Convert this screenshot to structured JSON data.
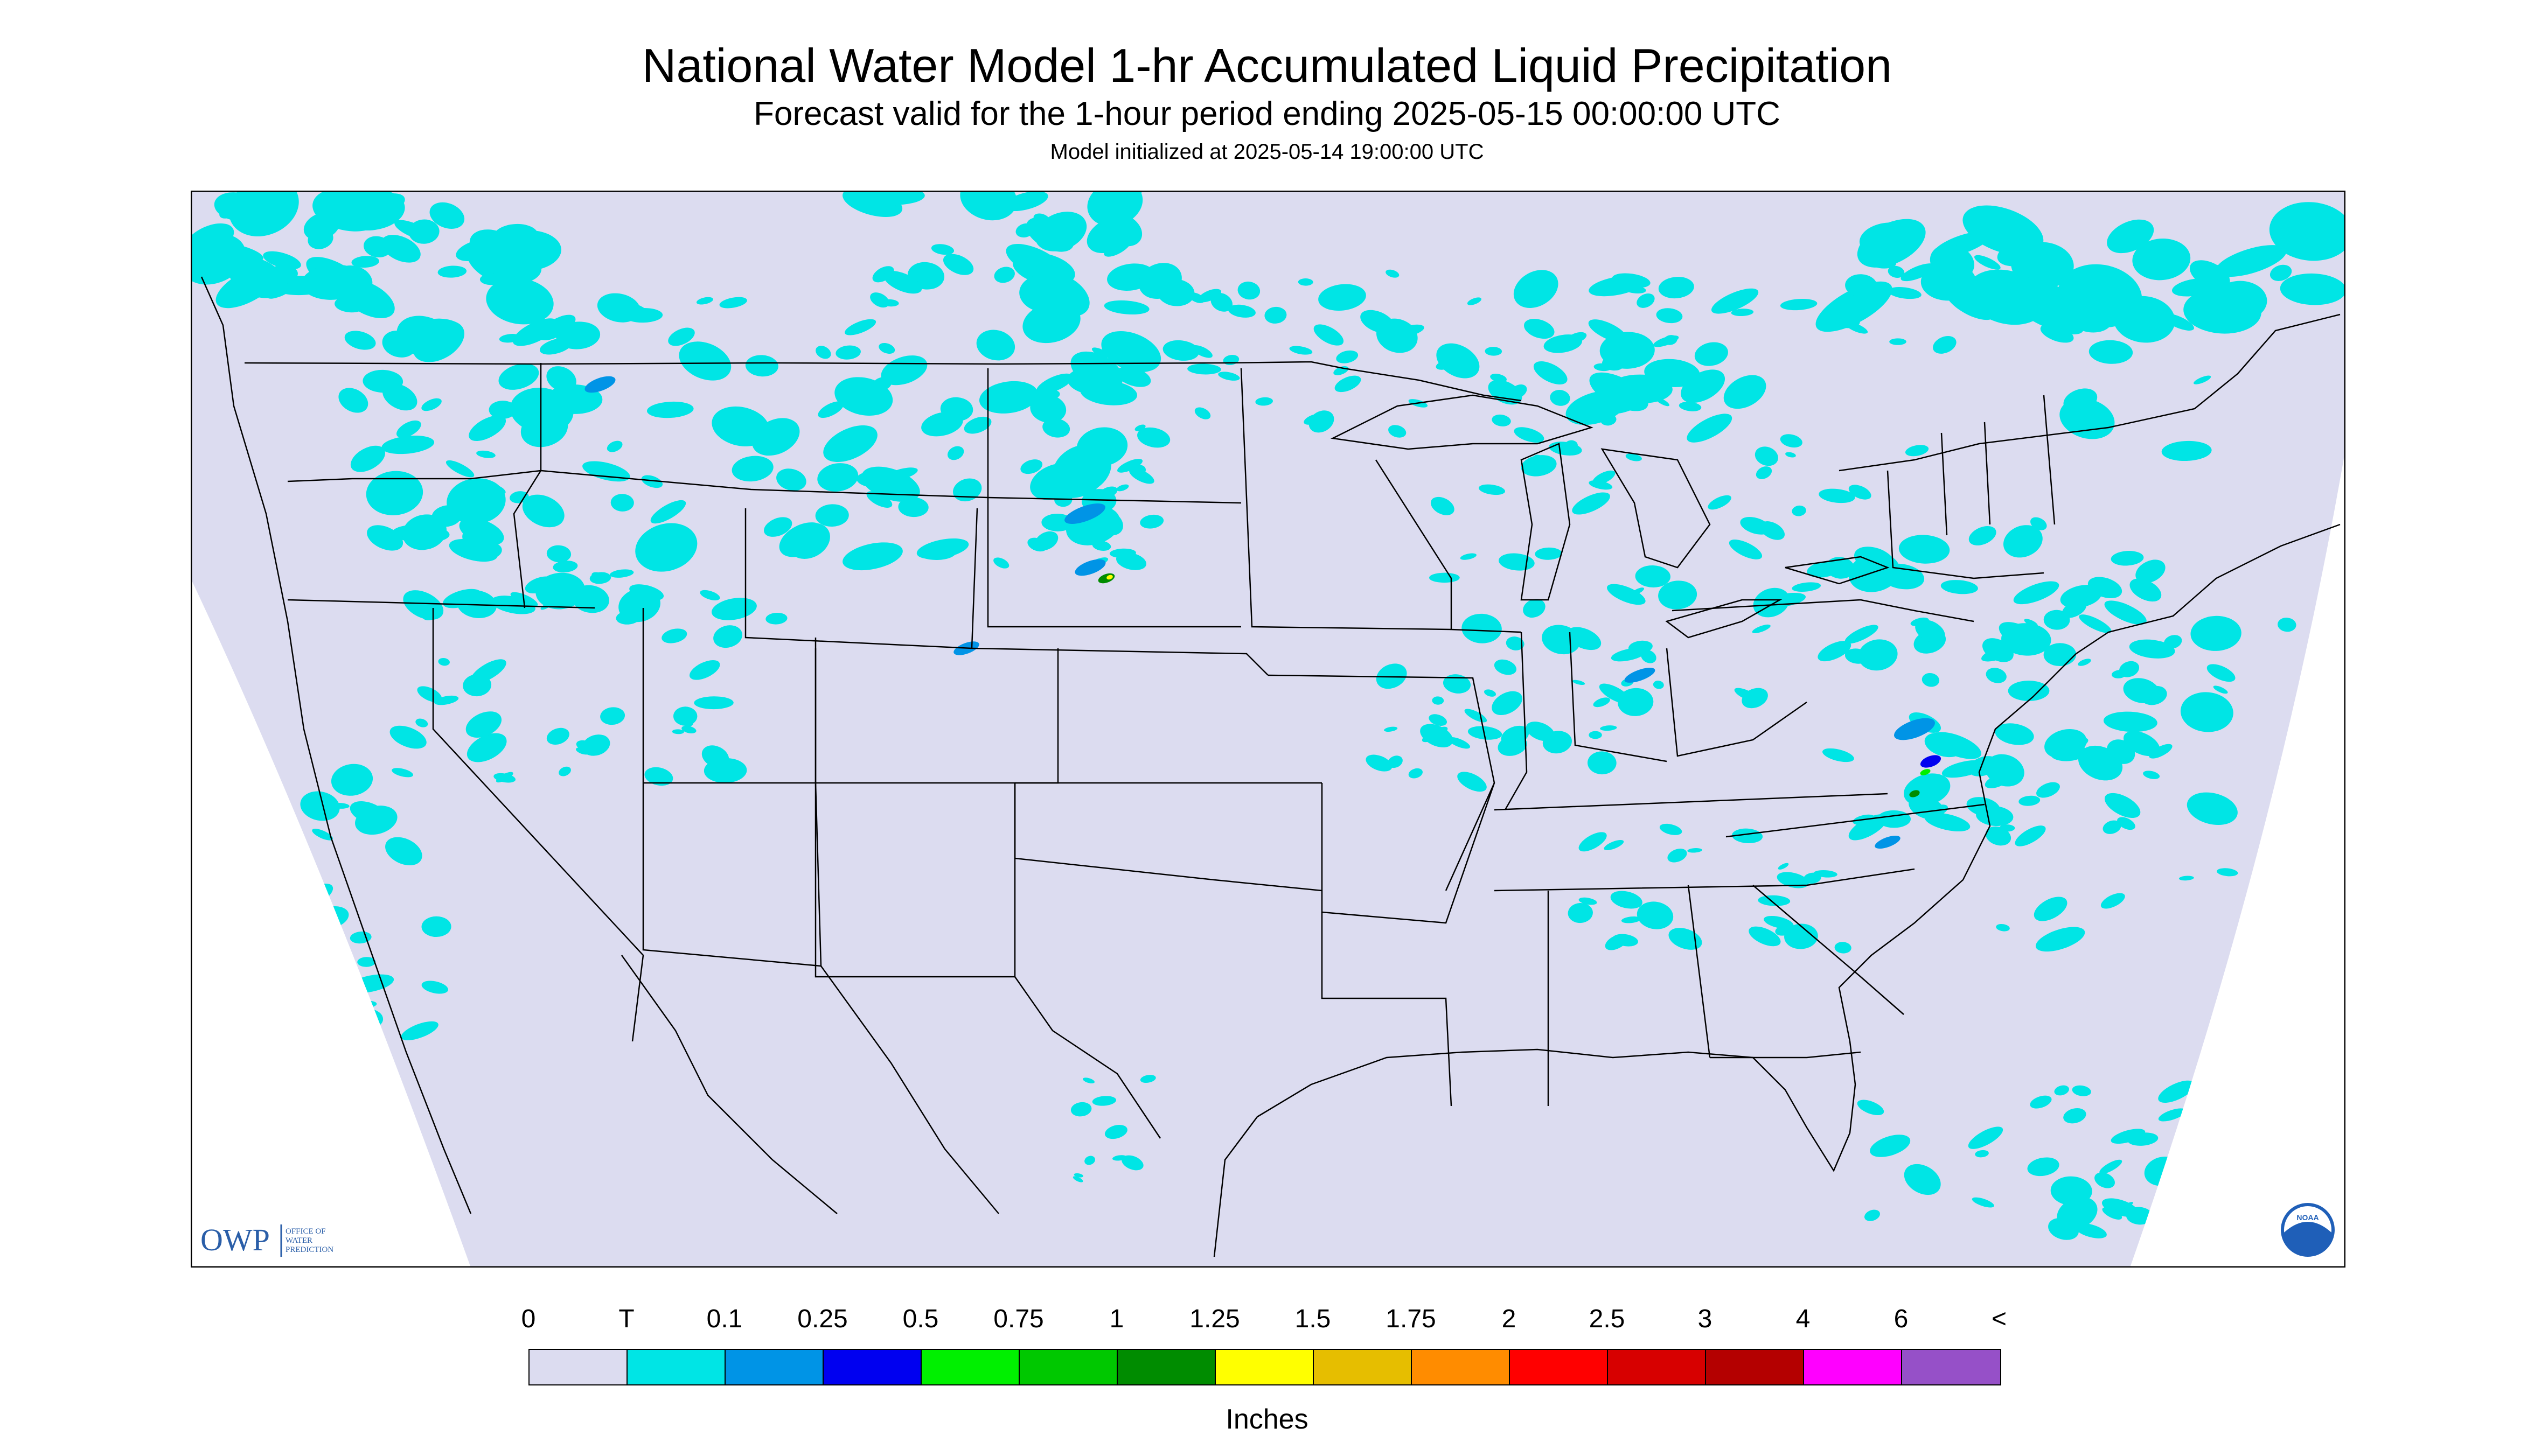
{
  "header": {
    "title": "National Water Model 1-hr Accumulated Liquid Precipitation",
    "subtitle": "Forecast valid for the 1-hour period ending 2025-05-15 00:00:00 UTC",
    "init": "Model initialized at 2025-05-14 19:00:00 UTC"
  },
  "map": {
    "background_color": "#dcdcf0",
    "outside_color": "#ffffff",
    "border_color": "#000000",
    "logos": {
      "owp_short": "OWP",
      "owp_long": [
        "OFFICE OF",
        "WATER",
        "PREDICTION"
      ],
      "noaa": "NOAA"
    }
  },
  "legend": {
    "labels": [
      "0",
      "T",
      "0.1",
      "0.25",
      "0.5",
      "0.75",
      "1",
      "1.25",
      "1.5",
      "1.75",
      "2",
      "2.5",
      "3",
      "4",
      "6",
      "<"
    ],
    "colors": [
      "#dcdcf0",
      "#00e5e5",
      "#0094e6",
      "#0000f0",
      "#00f000",
      "#00c800",
      "#008c00",
      "#ffff00",
      "#e6be00",
      "#ff8c00",
      "#ff0000",
      "#d70000",
      "#b40000",
      "#ff00ff",
      "#9650c8"
    ],
    "units": "Inches"
  }
}
